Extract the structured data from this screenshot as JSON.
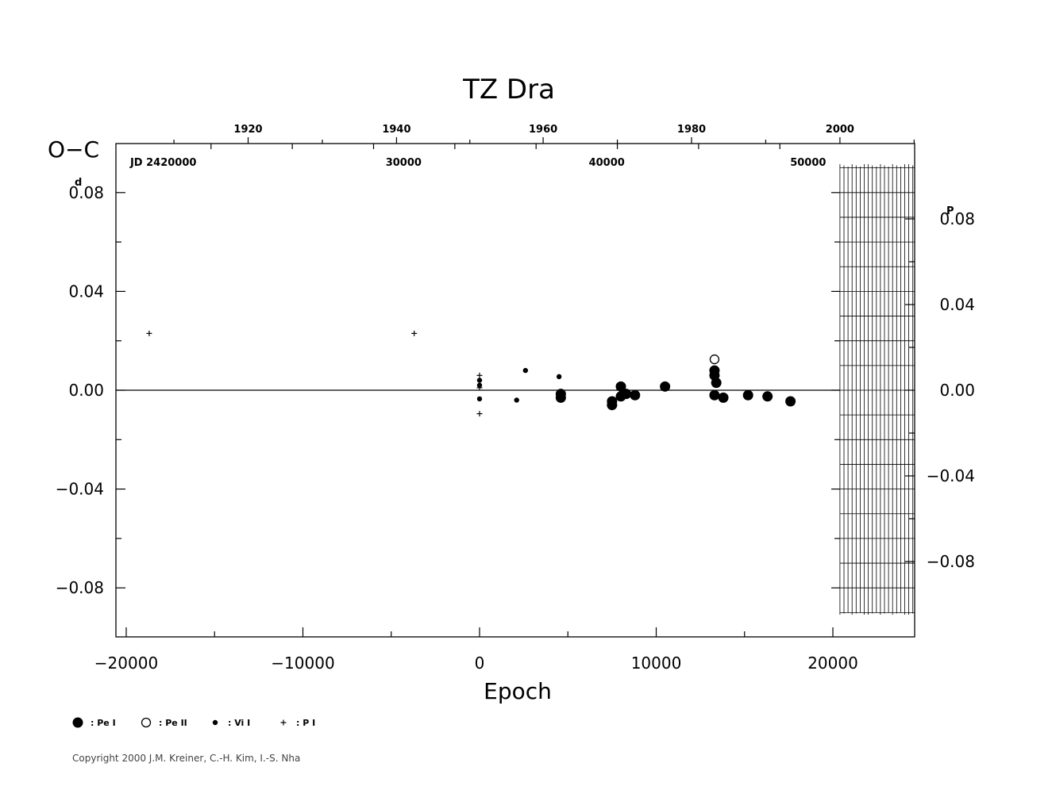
{
  "chart_data": {
    "type": "scatter",
    "title": "TZ  Dra",
    "ylabel": "O−C",
    "xlabel": "Epoch",
    "xlim": [
      -20500,
      24700
    ],
    "ylim": [
      -0.1,
      0.1
    ],
    "x_ticks": [
      "−20000",
      "−10000",
      "0",
      "10000",
      "20000"
    ],
    "x_tick_values": [
      -20000,
      -10000,
      0,
      10000,
      20000
    ],
    "y_ticks_left": [
      "0.08",
      "0.04",
      "0.00",
      "−0.04",
      "−0.08"
    ],
    "y_tick_values_left": [
      0.08,
      0.04,
      0.0,
      -0.04,
      -0.08
    ],
    "y_left_unit": "d",
    "y_ticks_right": [
      "0.08",
      "0.04",
      "0.00",
      "−0.04",
      "−0.08"
    ],
    "y_tick_values_right": [
      0.08,
      0.04,
      0.0,
      -0.04,
      -0.08
    ],
    "y_right_unit": "P",
    "year_ticks": [
      "1920",
      "1940",
      "1960",
      "1980",
      "2000"
    ],
    "year_tick_epochs": [
      -13100,
      -4700,
      3600,
      12000,
      20400
    ],
    "jd_labels": [
      "JD  2420000",
      "30000",
      "40000",
      "50000"
    ],
    "jd_label_epochs": [
      -17900,
      -4300,
      7200,
      18600
    ],
    "series": [
      {
        "name": "Pe I",
        "marker": "filled-large",
        "points": [
          [
            4600,
            -0.0015
          ],
          [
            4600,
            -0.003
          ],
          [
            7500,
            -0.0045
          ],
          [
            7500,
            -0.006
          ],
          [
            8000,
            0.0015
          ],
          [
            8000,
            -0.0025
          ],
          [
            8300,
            -0.0015
          ],
          [
            8800,
            -0.002
          ],
          [
            10500,
            0.0015
          ],
          [
            13300,
            0.008
          ],
          [
            13300,
            0.006
          ],
          [
            13400,
            0.003
          ],
          [
            13300,
            -0.002
          ],
          [
            13800,
            -0.003
          ],
          [
            15200,
            -0.002
          ],
          [
            16300,
            -0.0025
          ],
          [
            17600,
            -0.0045
          ]
        ]
      },
      {
        "name": "Pe II",
        "marker": "open",
        "points": [
          [
            13300,
            0.0125
          ]
        ]
      },
      {
        "name": "Vi I",
        "marker": "filled-small",
        "points": [
          [
            0,
            0.004
          ],
          [
            0,
            0.002
          ],
          [
            0,
            -0.0035
          ],
          [
            2100,
            -0.004
          ],
          [
            2600,
            0.008
          ],
          [
            4500,
            0.0055
          ]
        ]
      },
      {
        "name": "P I",
        "marker": "plus",
        "points": [
          [
            -18700,
            0.023
          ],
          [
            -3700,
            0.023
          ],
          [
            0,
            0.006
          ],
          [
            0,
            0.001
          ],
          [
            0,
            -0.0095
          ]
        ]
      }
    ],
    "legend": [
      {
        "symbol": "filled-large",
        "label": ": Pe I"
      },
      {
        "symbol": "open",
        "label": ": Pe II"
      },
      {
        "symbol": "filled-small",
        "label": ": Vi I"
      },
      {
        "symbol": "plus",
        "label": ": P I"
      }
    ],
    "legend_position": "bottom-left",
    "grid": false,
    "hatched_region_from_epoch": 20400
  },
  "copyright": "Copyright 2000 J.M. Kreiner, C.-H. Kim, I.-S. Nha"
}
